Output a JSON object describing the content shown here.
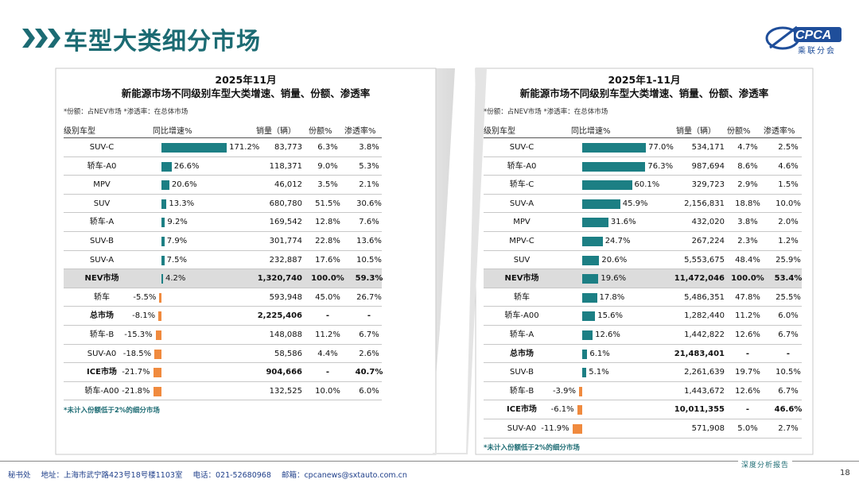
{
  "page": {
    "title": "车型大类细分市场",
    "logo": {
      "name": "CPCA",
      "sub": "乘联分会"
    },
    "footer_tag": "深度分析报告",
    "footer": {
      "org": "秘书处",
      "address": "地址：上海市武宁路423号18号楼1103室",
      "phone": "电话：021-52680968",
      "email": "邮箱：cpcanews@sxtauto.com.cn"
    },
    "page_number": "18"
  },
  "chart_data": [
    {
      "type": "table",
      "title": "2025年11月",
      "subtitle": "新能源市场不同级别车型大类增速、销量、份额、渗透率",
      "note": "*份额：占NEV市场   *渗透率：在总体市场",
      "footnote": "*未计入份额低于2%的细分市场",
      "columns": [
        "级别车型",
        "同比增速%",
        "销量（辆）",
        "份额%",
        "渗透率%"
      ],
      "rows": [
        {
          "name": "SUV-C",
          "growth": 171.2,
          "growth_label": "171.2%",
          "sales": "83,773",
          "share": "6.3%",
          "penetration": "3.8%",
          "bold": false,
          "highlight": false
        },
        {
          "name": "轿车-A0",
          "growth": 26.6,
          "growth_label": "26.6%",
          "sales": "118,371",
          "share": "9.0%",
          "penetration": "5.3%",
          "bold": false,
          "highlight": false
        },
        {
          "name": "MPV",
          "growth": 20.6,
          "growth_label": "20.6%",
          "sales": "46,012",
          "share": "3.5%",
          "penetration": "2.1%",
          "bold": false,
          "highlight": false
        },
        {
          "name": "SUV",
          "growth": 13.3,
          "growth_label": "13.3%",
          "sales": "680,780",
          "share": "51.5%",
          "penetration": "30.6%",
          "bold": false,
          "highlight": false
        },
        {
          "name": "轿车-A",
          "growth": 9.2,
          "growth_label": "9.2%",
          "sales": "169,542",
          "share": "12.8%",
          "penetration": "7.6%",
          "bold": false,
          "highlight": false
        },
        {
          "name": "SUV-B",
          "growth": 7.9,
          "growth_label": "7.9%",
          "sales": "301,774",
          "share": "22.8%",
          "penetration": "13.6%",
          "bold": false,
          "highlight": false
        },
        {
          "name": "SUV-A",
          "growth": 7.5,
          "growth_label": "7.5%",
          "sales": "232,887",
          "share": "17.6%",
          "penetration": "10.5%",
          "bold": false,
          "highlight": false
        },
        {
          "name": "NEV市场",
          "growth": 4.2,
          "growth_label": "4.2%",
          "sales": "1,320,740",
          "share": "100.0%",
          "penetration": "59.3%",
          "bold": true,
          "highlight": true
        },
        {
          "name": "轿车",
          "growth": -5.5,
          "growth_label": "-5.5%",
          "sales": "593,948",
          "share": "45.0%",
          "penetration": "26.7%",
          "bold": false,
          "highlight": false
        },
        {
          "name": "总市场",
          "growth": -8.1,
          "growth_label": "-8.1%",
          "sales": "2,225,406",
          "share": "-",
          "penetration": "-",
          "bold": true,
          "highlight": false
        },
        {
          "name": "轿车-B",
          "growth": -15.3,
          "growth_label": "-15.3%",
          "sales": "148,088",
          "share": "11.2%",
          "penetration": "6.7%",
          "bold": false,
          "highlight": false
        },
        {
          "name": "SUV-A0",
          "growth": -18.5,
          "growth_label": "-18.5%",
          "sales": "58,586",
          "share": "4.4%",
          "penetration": "2.6%",
          "bold": false,
          "highlight": false
        },
        {
          "name": "ICE市场",
          "growth": -21.7,
          "growth_label": "-21.7%",
          "sales": "904,666",
          "share": "-",
          "penetration": "40.7%",
          "bold": true,
          "highlight": false
        },
        {
          "name": "轿车-A00",
          "growth": -21.8,
          "growth_label": "-21.8%",
          "sales": "132,525",
          "share": "10.0%",
          "penetration": "6.0%",
          "bold": false,
          "highlight": false
        }
      ]
    },
    {
      "type": "table",
      "title": "2025年1-11月",
      "subtitle": "新能源市场不同级别车型大类增速、销量、份额、渗透率",
      "note": "*份额：占NEV市场   *渗透率：在总体市场",
      "footnote": "*未计入份额低于2%的细分市场",
      "columns": [
        "级别车型",
        "同比增速%",
        "销量（辆）",
        "份额%",
        "渗透率%"
      ],
      "rows": [
        {
          "name": "SUV-C",
          "growth": 77.0,
          "growth_label": "77.0%",
          "sales": "534,171",
          "share": "4.7%",
          "penetration": "2.5%",
          "bold": false,
          "highlight": false
        },
        {
          "name": "轿车-A0",
          "growth": 76.3,
          "growth_label": "76.3%",
          "sales": "987,694",
          "share": "8.6%",
          "penetration": "4.6%",
          "bold": false,
          "highlight": false
        },
        {
          "name": "轿车-C",
          "growth": 60.1,
          "growth_label": "60.1%",
          "sales": "329,723",
          "share": "2.9%",
          "penetration": "1.5%",
          "bold": false,
          "highlight": false
        },
        {
          "name": "SUV-A",
          "growth": 45.9,
          "growth_label": "45.9%",
          "sales": "2,156,831",
          "share": "18.8%",
          "penetration": "10.0%",
          "bold": false,
          "highlight": false
        },
        {
          "name": "MPV",
          "growth": 31.6,
          "growth_label": "31.6%",
          "sales": "432,020",
          "share": "3.8%",
          "penetration": "2.0%",
          "bold": false,
          "highlight": false
        },
        {
          "name": "MPV-C",
          "growth": 24.7,
          "growth_label": "24.7%",
          "sales": "267,224",
          "share": "2.3%",
          "penetration": "1.2%",
          "bold": false,
          "highlight": false
        },
        {
          "name": "SUV",
          "growth": 20.6,
          "growth_label": "20.6%",
          "sales": "5,553,675",
          "share": "48.4%",
          "penetration": "25.9%",
          "bold": false,
          "highlight": false
        },
        {
          "name": "NEV市场",
          "growth": 19.6,
          "growth_label": "19.6%",
          "sales": "11,472,046",
          "share": "100.0%",
          "penetration": "53.4%",
          "bold": true,
          "highlight": true
        },
        {
          "name": "轿车",
          "growth": 17.8,
          "growth_label": "17.8%",
          "sales": "5,486,351",
          "share": "47.8%",
          "penetration": "25.5%",
          "bold": false,
          "highlight": false
        },
        {
          "name": "轿车-A00",
          "growth": 15.6,
          "growth_label": "15.6%",
          "sales": "1,282,440",
          "share": "11.2%",
          "penetration": "6.0%",
          "bold": false,
          "highlight": false
        },
        {
          "name": "轿车-A",
          "growth": 12.6,
          "growth_label": "12.6%",
          "sales": "1,442,822",
          "share": "12.6%",
          "penetration": "6.7%",
          "bold": false,
          "highlight": false
        },
        {
          "name": "总市场",
          "growth": 6.1,
          "growth_label": "6.1%",
          "sales": "21,483,401",
          "share": "-",
          "penetration": "-",
          "bold": true,
          "highlight": false
        },
        {
          "name": "SUV-B",
          "growth": 5.1,
          "growth_label": "5.1%",
          "sales": "2,261,639",
          "share": "19.7%",
          "penetration": "10.5%",
          "bold": false,
          "highlight": false
        },
        {
          "name": "轿车-B",
          "growth": -3.9,
          "growth_label": "-3.9%",
          "sales": "1,443,672",
          "share": "12.6%",
          "penetration": "6.7%",
          "bold": false,
          "highlight": false
        },
        {
          "name": "ICE市场",
          "growth": -6.1,
          "growth_label": "-6.1%",
          "sales": "10,011,355",
          "share": "-",
          "penetration": "46.6%",
          "bold": true,
          "highlight": false
        },
        {
          "name": "SUV-A0",
          "growth": -11.9,
          "growth_label": "-11.9%",
          "sales": "571,908",
          "share": "5.0%",
          "penetration": "2.7%",
          "bold": false,
          "highlight": false
        }
      ]
    }
  ]
}
